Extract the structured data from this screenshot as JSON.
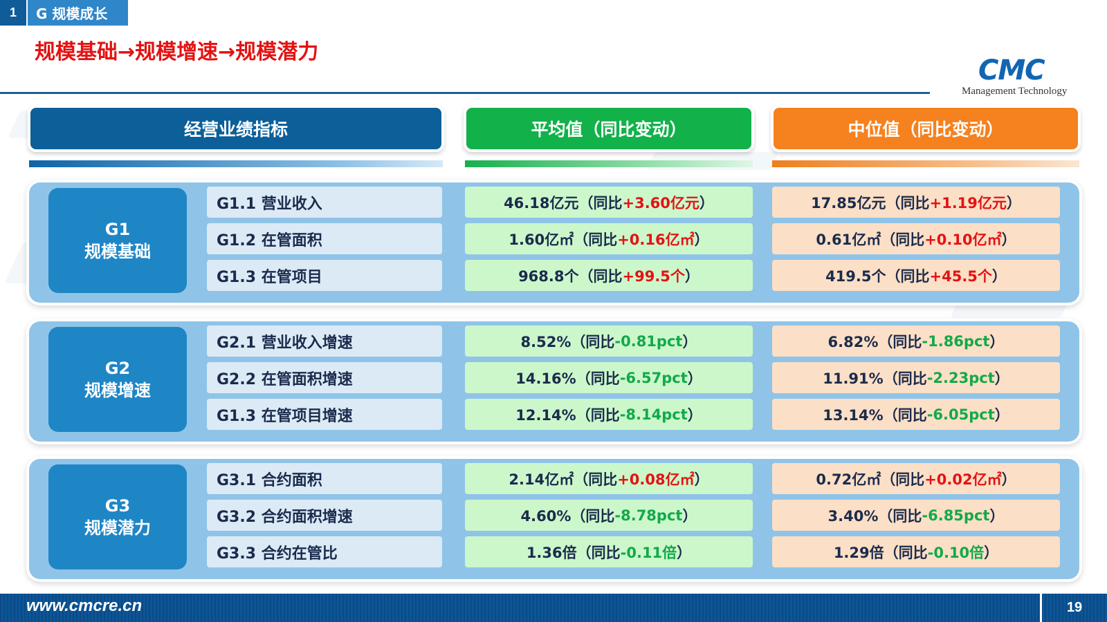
{
  "section": {
    "number": "1",
    "title": "G 规模成长"
  },
  "slide_title": "规模基础→规模增速→规模潜力",
  "logo": {
    "mark": "CMC",
    "subtitle": "Management Technology"
  },
  "headers": {
    "indicator": "经营业绩指标",
    "average": "平均值（同比变动）",
    "median": "中位值（同比变动）"
  },
  "colors": {
    "navy": "#0c5f99",
    "green": "#12b14a",
    "orange": "#f5811f",
    "up": "#e31313",
    "down": "#12a94a"
  },
  "groups": [
    {
      "code": "G1",
      "name": "规模基础",
      "rows": [
        {
          "label": "G1.1 营业收入",
          "avg": {
            "base": "46.18亿元（同比",
            "change": "+3.60亿元",
            "direction": "up",
            "tail": "）"
          },
          "med": {
            "base": "17.85亿元（同比",
            "change": "+1.19亿元",
            "direction": "up",
            "tail": "）"
          }
        },
        {
          "label": "G1.2 在管面积",
          "avg": {
            "base": "1.60亿㎡（同比",
            "change": "+0.16亿㎡",
            "direction": "up",
            "tail": "）"
          },
          "med": {
            "base": "0.61亿㎡（同比",
            "change": "+0.10亿㎡",
            "direction": "up",
            "tail": "）"
          }
        },
        {
          "label": "G1.3 在管项目",
          "avg": {
            "base": "968.8个（同比",
            "change": "+99.5个",
            "direction": "up",
            "tail": "）"
          },
          "med": {
            "base": "419.5个（同比",
            "change": "+45.5个",
            "direction": "up",
            "tail": "）"
          }
        }
      ]
    },
    {
      "code": "G2",
      "name": "规模增速",
      "rows": [
        {
          "label": "G2.1 营业收入增速",
          "avg": {
            "base": "8.52%（同比",
            "change": "-0.81pct",
            "direction": "down",
            "tail": "）"
          },
          "med": {
            "base": "6.82%（同比",
            "change": "-1.86pct",
            "direction": "down",
            "tail": "）"
          }
        },
        {
          "label": "G2.2 在管面积增速",
          "avg": {
            "base": "14.16%（同比",
            "change": "-6.57pct",
            "direction": "down",
            "tail": "）"
          },
          "med": {
            "base": "11.91%（同比",
            "change": "-2.23pct",
            "direction": "down",
            "tail": "）"
          }
        },
        {
          "label": "G1.3 在管项目增速",
          "avg": {
            "base": "12.14%（同比",
            "change": "-8.14pct",
            "direction": "down",
            "tail": "）"
          },
          "med": {
            "base": "13.14%（同比",
            "change": "-6.05pct",
            "direction": "down",
            "tail": "）"
          }
        }
      ]
    },
    {
      "code": "G3",
      "name": "规模潜力",
      "rows": [
        {
          "label": "G3.1 合约面积",
          "avg": {
            "base": "2.14亿㎡（同比",
            "change": "+0.08亿㎡",
            "direction": "up",
            "tail": "）"
          },
          "med": {
            "base": "0.72亿㎡（同比",
            "change": "+0.02亿㎡",
            "direction": "up",
            "tail": "）"
          }
        },
        {
          "label": "G3.2 合约面积增速",
          "avg": {
            "base": "4.60%（同比",
            "change": "-8.78pct",
            "direction": "down",
            "tail": "）"
          },
          "med": {
            "base": "3.40%（同比",
            "change": "-6.85pct",
            "direction": "down",
            "tail": "）"
          }
        },
        {
          "label": "G3.3 合约在管比",
          "avg": {
            "base": "1.36倍（同比",
            "change": "-0.11倍",
            "direction": "down",
            "tail": "）"
          },
          "med": {
            "base": "1.29倍（同比",
            "change": "-0.10倍",
            "direction": "down",
            "tail": "）"
          }
        }
      ]
    }
  ],
  "footer": {
    "url": "www.cmcre.cn",
    "page": "19"
  }
}
